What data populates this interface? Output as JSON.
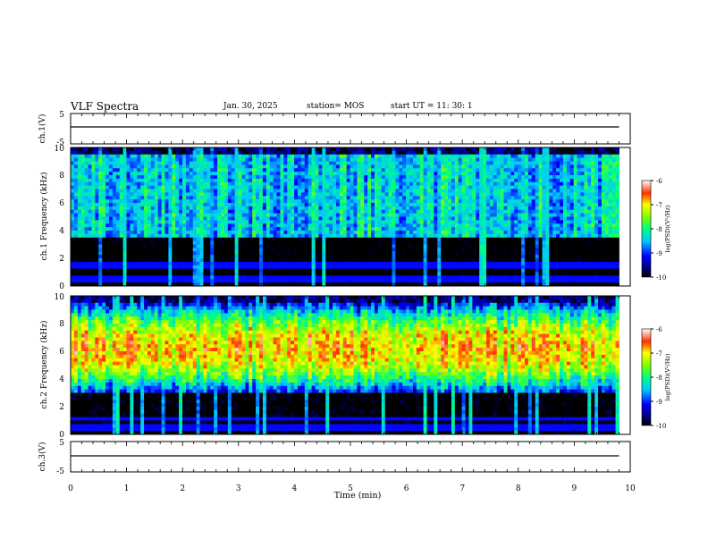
{
  "header": {
    "title": "VLF Spectra",
    "date": "Jan. 30, 2025",
    "station": "station= MOS",
    "start_ut": "start  UT =   11: 30: 1"
  },
  "colorbar": {
    "label": "log(PSD)(V²/Hz)",
    "ticks": [
      "-6",
      "-7",
      "-8",
      "-9",
      "-10"
    ]
  },
  "chart_data": [
    {
      "type": "line",
      "panel": "ch1-voltage",
      "ylabel": "ch.1(V)",
      "ylim": [
        -5,
        5
      ],
      "yticks": [
        "5",
        "-5"
      ],
      "xlim": [
        0,
        10
      ],
      "series": [
        {
          "x": [
            0,
            9.8
          ],
          "y": [
            0.6,
            0.6
          ]
        }
      ]
    },
    {
      "type": "heatmap",
      "panel": "ch1-spectrogram",
      "ylabel": "ch.1 Frequency (kHz)",
      "ylim": [
        0,
        10
      ],
      "yticks": [
        "0",
        "2",
        "4",
        "6",
        "8",
        "10"
      ],
      "xlim": [
        0,
        10
      ],
      "data_extent_min": 9.8,
      "colorscale": "jet",
      "clim": [
        -10,
        -6
      ],
      "band_khz": [
        3.5,
        9.6
      ],
      "band_level": -8.4,
      "background_level": -10.3,
      "hum_lines_khz": [
        0.5,
        1.5
      ],
      "spike_density": "high"
    },
    {
      "type": "heatmap",
      "panel": "ch2-spectrogram",
      "ylabel": "ch.2 Frequency (kHz)",
      "ylim": [
        0,
        10
      ],
      "yticks": [
        "0",
        "2",
        "4",
        "6",
        "8",
        "10"
      ],
      "xlim": [
        0,
        10
      ],
      "data_extent_min": 9.8,
      "colorscale": "jet",
      "clim": [
        -10,
        -6
      ],
      "band_khz": [
        3.0,
        9.6
      ],
      "band_peak_khz": 6.2,
      "band_peak_level": -6.9,
      "background_level": -10.2,
      "hum_lines_khz": [
        0.5,
        1.2
      ],
      "spike_density": "high"
    },
    {
      "type": "line",
      "panel": "ch3-voltage",
      "ylabel": "ch.3(V)",
      "ylim": [
        -5,
        5
      ],
      "yticks": [
        "5",
        "-5"
      ],
      "xlim": [
        0,
        10
      ],
      "series": [
        {
          "x": [
            0,
            9.8
          ],
          "y": [
            0.3,
            0.3
          ]
        }
      ]
    }
  ],
  "xaxis": {
    "label": "Time  (min)",
    "ticks": [
      "0",
      "1",
      "2",
      "3",
      "4",
      "5",
      "6",
      "7",
      "8",
      "9",
      "10"
    ]
  }
}
